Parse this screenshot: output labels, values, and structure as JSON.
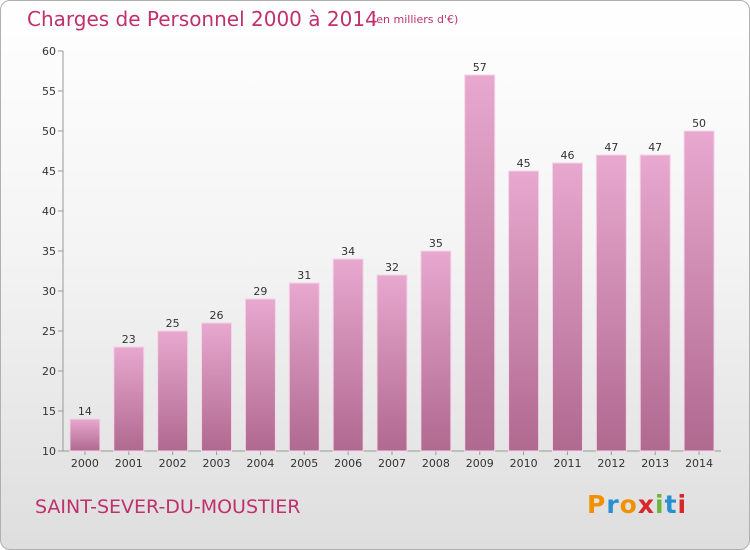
{
  "header": {
    "title": "Charges de Personnel 2000 à 2014",
    "subtitle": "(en milliers d'€)"
  },
  "footer": {
    "commune": "SAINT-SEVER-DU-MOUSTIER",
    "brand": "Proxiti",
    "brand_colors": [
      "#f29100",
      "#2a8fd0",
      "#f29100",
      "#d8262a",
      "#6db33f",
      "#2a8fd0",
      "#d8262a"
    ]
  },
  "colors": {
    "bar_top": "#e8a8cf",
    "bar_bottom": "#b0698f",
    "axis": "#999999",
    "text": "#333333",
    "accent": "#c0306e"
  },
  "chart_data": {
    "type": "bar",
    "categories": [
      "2000",
      "2001",
      "2002",
      "2003",
      "2004",
      "2005",
      "2006",
      "2007",
      "2008",
      "2009",
      "2010",
      "2011",
      "2012",
      "2013",
      "2014"
    ],
    "values": [
      14,
      23,
      25,
      26,
      29,
      31,
      34,
      32,
      35,
      57,
      45,
      46,
      47,
      47,
      50
    ],
    "title": "Charges de Personnel 2000 à 2014",
    "ylim": [
      10,
      60
    ],
    "yticks": [
      10,
      15,
      20,
      25,
      30,
      35,
      40,
      45,
      50,
      55,
      60
    ],
    "grid": false,
    "legend": "none"
  }
}
